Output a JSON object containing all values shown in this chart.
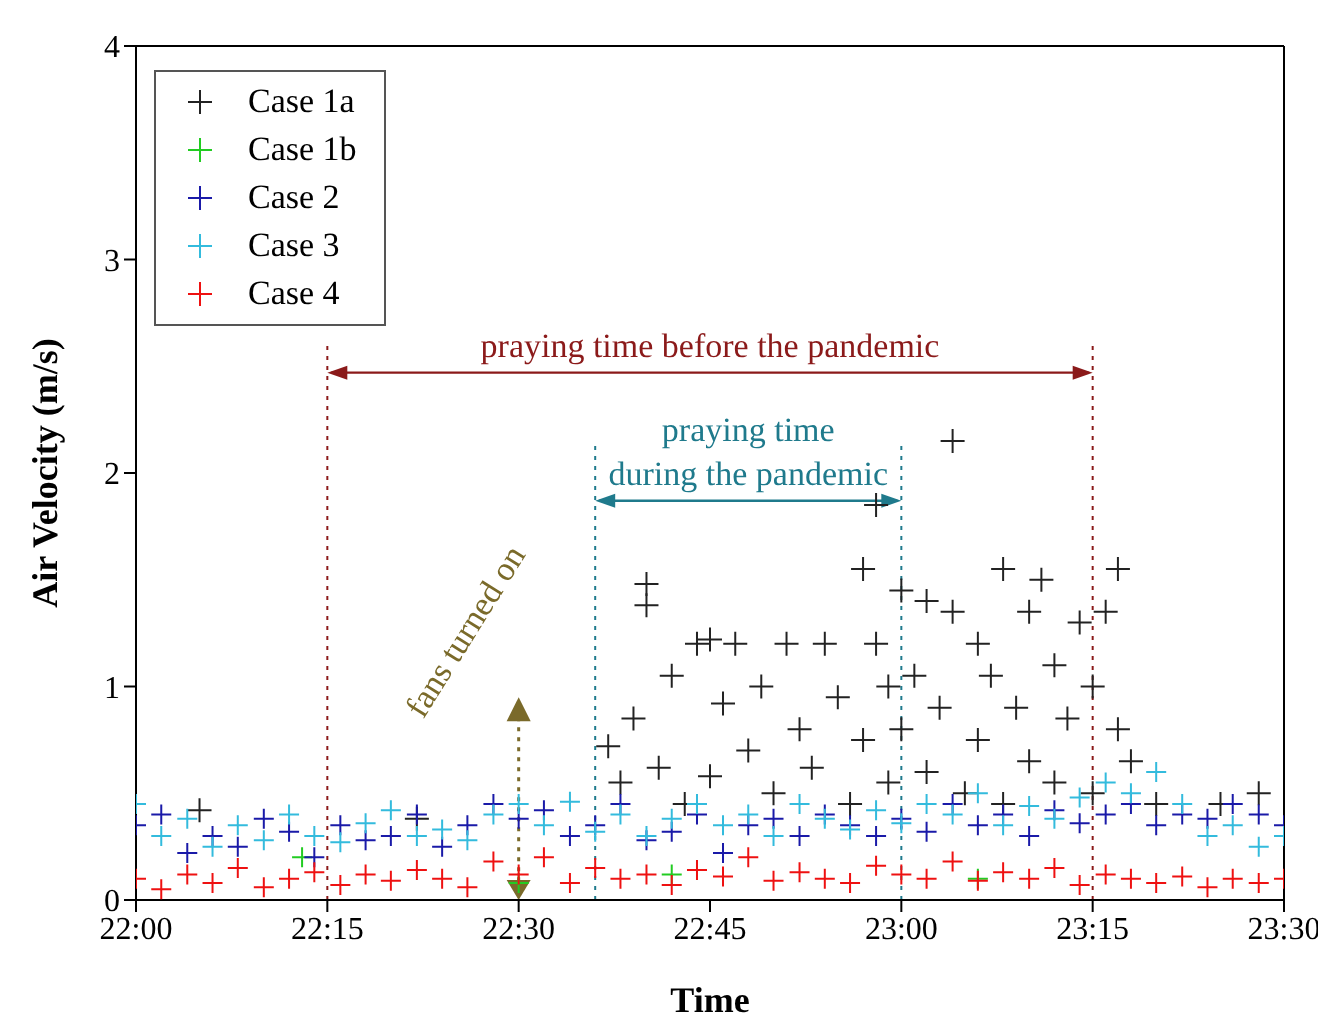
{
  "chart_data": {
    "type": "scatter",
    "xlabel": "Time",
    "ylabel": "Air Velocity (m/s)",
    "xlim": [
      22,
      23.5
    ],
    "xticks": [
      {
        "value": 22,
        "label": "22:00"
      },
      {
        "value": 22.25,
        "label": "22:15"
      },
      {
        "value": 22.5,
        "label": "22:30"
      },
      {
        "value": 22.75,
        "label": "22:45"
      },
      {
        "value": 23,
        "label": "23:00"
      },
      {
        "value": 23.25,
        "label": "23:15"
      },
      {
        "value": 23.5,
        "label": "23:30"
      }
    ],
    "ylim": [
      0,
      4
    ],
    "yticks": [
      0,
      1,
      2,
      3,
      4
    ],
    "marker": "cross",
    "legend": "top left",
    "grid": false,
    "series": [
      {
        "name": "Case 1a",
        "color": "#222222",
        "x": [
          22.083,
          22.367,
          22.617,
          22.633,
          22.65,
          22.667,
          22.667,
          22.683,
          22.7,
          22.717,
          22.733,
          22.75,
          22.75,
          22.767,
          22.783,
          22.8,
          22.817,
          22.833,
          22.85,
          22.867,
          22.883,
          22.9,
          22.917,
          22.933,
          22.95,
          22.95,
          22.967,
          22.967,
          22.983,
          22.983,
          23.0,
          23.0,
          23.017,
          23.033,
          23.033,
          23.05,
          23.067,
          23.067,
          23.083,
          23.1,
          23.1,
          23.117,
          23.133,
          23.133,
          23.15,
          23.167,
          23.167,
          23.183,
          23.2,
          23.2,
          23.217,
          23.233,
          23.25,
          23.25,
          23.267,
          23.283,
          23.283,
          23.3,
          23.333,
          23.417,
          23.467
        ],
        "values": [
          0.42,
          0.38,
          0.72,
          0.55,
          0.85,
          1.48,
          1.38,
          0.62,
          1.05,
          0.45,
          1.2,
          1.22,
          0.58,
          0.92,
          1.2,
          0.7,
          1.0,
          0.5,
          1.2,
          0.8,
          0.62,
          1.2,
          0.95,
          0.45,
          1.55,
          0.75,
          1.85,
          1.2,
          1.0,
          0.55,
          1.45,
          0.8,
          1.05,
          1.4,
          0.6,
          0.9,
          2.15,
          1.35,
          0.5,
          1.2,
          0.75,
          1.05,
          1.55,
          0.45,
          0.9,
          1.35,
          0.65,
          1.5,
          1.1,
          0.55,
          0.85,
          1.3,
          1.0,
          0.5,
          1.35,
          1.55,
          0.8,
          0.65,
          0.45,
          0.45,
          0.5
        ]
      },
      {
        "name": "Case 1b",
        "color": "#22cc22",
        "x": [
          22.217,
          22.5,
          22.7,
          23.1
        ],
        "values": [
          0.2,
          0.08,
          0.12,
          0.1
        ]
      },
      {
        "name": "Case 2",
        "color": "#1a1aa8",
        "x": [
          22,
          22.033,
          22.067,
          22.1,
          22.133,
          22.167,
          22.2,
          22.233,
          22.267,
          22.3,
          22.333,
          22.367,
          22.4,
          22.433,
          22.467,
          22.5,
          22.533,
          22.567,
          22.6,
          22.633,
          22.667,
          22.7,
          22.733,
          22.767,
          22.8,
          22.833,
          22.867,
          22.9,
          22.933,
          22.967,
          23,
          23.033,
          23.067,
          23.1,
          23.133,
          23.167,
          23.2,
          23.233,
          23.267,
          23.3,
          23.333,
          23.367,
          23.4,
          23.433,
          23.467,
          23.5
        ],
        "values": [
          0.35,
          0.4,
          0.22,
          0.3,
          0.25,
          0.38,
          0.32,
          0.2,
          0.35,
          0.28,
          0.3,
          0.4,
          0.25,
          0.35,
          0.45,
          0.38,
          0.42,
          0.3,
          0.35,
          0.45,
          0.28,
          0.32,
          0.4,
          0.22,
          0.35,
          0.38,
          0.3,
          0.4,
          0.35,
          0.3,
          0.38,
          0.32,
          0.45,
          0.35,
          0.4,
          0.3,
          0.42,
          0.36,
          0.4,
          0.45,
          0.35,
          0.4,
          0.38,
          0.45,
          0.4,
          0.35
        ]
      },
      {
        "name": "Case 3",
        "color": "#33bbdd",
        "x": [
          22,
          22.033,
          22.067,
          22.1,
          22.133,
          22.167,
          22.2,
          22.233,
          22.267,
          22.3,
          22.333,
          22.367,
          22.4,
          22.433,
          22.467,
          22.5,
          22.533,
          22.567,
          22.6,
          22.633,
          22.667,
          22.7,
          22.733,
          22.767,
          22.8,
          22.833,
          22.867,
          22.9,
          22.933,
          22.967,
          23,
          23.033,
          23.067,
          23.1,
          23.133,
          23.167,
          23.2,
          23.233,
          23.267,
          23.3,
          23.333,
          23.367,
          23.4,
          23.433,
          23.467,
          23.5
        ],
        "values": [
          0.45,
          0.3,
          0.38,
          0.25,
          0.35,
          0.28,
          0.4,
          0.3,
          0.27,
          0.36,
          0.42,
          0.3,
          0.33,
          0.28,
          0.4,
          0.45,
          0.35,
          0.46,
          0.32,
          0.4,
          0.3,
          0.38,
          0.45,
          0.35,
          0.4,
          0.3,
          0.45,
          0.38,
          0.33,
          0.42,
          0.36,
          0.45,
          0.4,
          0.5,
          0.35,
          0.44,
          0.38,
          0.48,
          0.55,
          0.5,
          0.6,
          0.45,
          0.3,
          0.35,
          0.25,
          0.3
        ]
      },
      {
        "name": "Case 4",
        "color": "#ee1111",
        "x": [
          22,
          22.033,
          22.067,
          22.1,
          22.133,
          22.167,
          22.2,
          22.233,
          22.267,
          22.3,
          22.333,
          22.367,
          22.4,
          22.433,
          22.467,
          22.5,
          22.533,
          22.567,
          22.6,
          22.633,
          22.667,
          22.7,
          22.733,
          22.767,
          22.8,
          22.833,
          22.867,
          22.9,
          22.933,
          22.967,
          23,
          23.033,
          23.067,
          23.1,
          23.133,
          23.167,
          23.2,
          23.233,
          23.267,
          23.3,
          23.333,
          23.367,
          23.4,
          23.433,
          23.467,
          23.5
        ],
        "values": [
          0.1,
          0.05,
          0.12,
          0.08,
          0.15,
          0.06,
          0.1,
          0.13,
          0.07,
          0.12,
          0.09,
          0.14,
          0.1,
          0.06,
          0.18,
          0.12,
          0.2,
          0.08,
          0.15,
          0.1,
          0.12,
          0.07,
          0.14,
          0.11,
          0.2,
          0.09,
          0.13,
          0.1,
          0.08,
          0.16,
          0.12,
          0.1,
          0.18,
          0.09,
          0.13,
          0.1,
          0.15,
          0.07,
          0.12,
          0.1,
          0.08,
          0.11,
          0.06,
          0.1,
          0.08,
          0.1
        ]
      }
    ],
    "ref_lines": [
      {
        "axis": "x",
        "value": 22.25,
        "label": "praying time before the pandemic",
        "color": "#8b1a1a",
        "line_style": "dotted"
      },
      {
        "axis": "x",
        "value": 23.25,
        "color": "#8b1a1a",
        "line_style": "dotted"
      },
      {
        "axis": "x",
        "value": 22.6,
        "label": "praying time\nduring the pandemic",
        "color": "#1f7a8c",
        "line_style": "dotted"
      },
      {
        "axis": "x",
        "value": 23.0,
        "color": "#1f7a8c",
        "line_style": "dotted"
      },
      {
        "axis": "x",
        "value": 22.5,
        "label": "fans turned on",
        "color": "#7a6a2a",
        "line_style": "dotted"
      }
    ]
  }
}
